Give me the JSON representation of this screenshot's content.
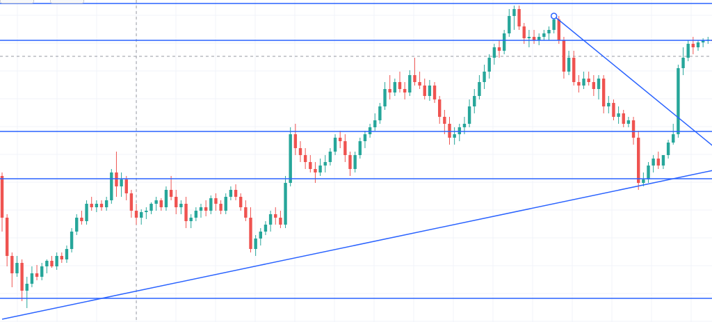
{
  "chart_data": {
    "type": "candlestick",
    "title": "",
    "xlabel": "",
    "ylabel": "",
    "ylim": [
      0,
      463
    ],
    "grid": true,
    "colors": {
      "up": "#26a69a",
      "down": "#ef5350",
      "drawing": "#2962ff",
      "grid": "#f0f3fa",
      "crosshair": "#9598a1"
    },
    "horizontal_levels": [
      458,
      405,
      274,
      206,
      34
    ],
    "crosshair": {
      "x_index": 27,
      "y": 382
    },
    "trendlines": [
      {
        "name": "rising-support",
        "from_index": 0,
        "from_value": 4,
        "to_index": 143,
        "to_value": 218
      },
      {
        "name": "falling-resistance",
        "from_index": 111,
        "from_value": 440,
        "to_index": 143,
        "to_value": 253,
        "anchor_marker": true
      }
    ],
    "candles": [
      [
        210,
        215,
        130,
        150
      ],
      [
        150,
        155,
        80,
        95
      ],
      [
        95,
        100,
        50,
        70
      ],
      [
        70,
        95,
        65,
        85
      ],
      [
        85,
        90,
        30,
        45
      ],
      [
        45,
        65,
        20,
        55
      ],
      [
        55,
        80,
        50,
        70
      ],
      [
        70,
        82,
        60,
        65
      ],
      [
        65,
        85,
        60,
        80
      ],
      [
        80,
        90,
        70,
        88
      ],
      [
        88,
        95,
        78,
        80
      ],
      [
        80,
        100,
        75,
        95
      ],
      [
        95,
        100,
        85,
        90
      ],
      [
        90,
        110,
        85,
        105
      ],
      [
        105,
        135,
        100,
        130
      ],
      [
        130,
        155,
        125,
        150
      ],
      [
        150,
        160,
        140,
        145
      ],
      [
        145,
        175,
        140,
        170
      ],
      [
        170,
        180,
        160,
        165
      ],
      [
        165,
        175,
        158,
        170
      ],
      [
        170,
        175,
        160,
        165
      ],
      [
        165,
        180,
        160,
        175
      ],
      [
        175,
        220,
        170,
        215
      ],
      [
        215,
        245,
        180,
        195
      ],
      [
        195,
        215,
        180,
        205
      ],
      [
        205,
        210,
        175,
        185
      ],
      [
        185,
        190,
        150,
        160
      ],
      [
        160,
        170,
        140,
        150
      ],
      [
        150,
        162,
        140,
        158
      ],
      [
        158,
        165,
        148,
        160
      ],
      [
        160,
        172,
        155,
        170
      ],
      [
        170,
        180,
        160,
        175
      ],
      [
        175,
        178,
        160,
        165
      ],
      [
        165,
        195,
        160,
        190
      ],
      [
        190,
        210,
        175,
        180
      ],
      [
        180,
        190,
        155,
        165
      ],
      [
        165,
        175,
        155,
        170
      ],
      [
        170,
        180,
        135,
        145
      ],
      [
        145,
        155,
        135,
        150
      ],
      [
        150,
        165,
        145,
        160
      ],
      [
        160,
        170,
        150,
        165
      ],
      [
        165,
        175,
        152,
        160
      ],
      [
        160,
        182,
        155,
        178
      ],
      [
        178,
        185,
        160,
        170
      ],
      [
        170,
        175,
        155,
        160
      ],
      [
        160,
        185,
        155,
        180
      ],
      [
        180,
        195,
        175,
        190
      ],
      [
        190,
        198,
        175,
        180
      ],
      [
        180,
        185,
        160,
        165
      ],
      [
        165,
        175,
        145,
        150
      ],
      [
        150,
        165,
        100,
        105
      ],
      [
        105,
        125,
        95,
        120
      ],
      [
        120,
        135,
        110,
        130
      ],
      [
        130,
        145,
        125,
        140
      ],
      [
        140,
        160,
        130,
        155
      ],
      [
        155,
        165,
        140,
        150
      ],
      [
        150,
        160,
        135,
        140
      ],
      [
        140,
        210,
        135,
        200
      ],
      [
        200,
        280,
        195,
        270
      ],
      [
        270,
        285,
        240,
        250
      ],
      [
        250,
        260,
        230,
        240
      ],
      [
        240,
        250,
        220,
        230
      ],
      [
        230,
        240,
        215,
        220
      ],
      [
        220,
        230,
        200,
        215
      ],
      [
        215,
        235,
        210,
        225
      ],
      [
        225,
        240,
        215,
        230
      ],
      [
        230,
        250,
        225,
        245
      ],
      [
        245,
        270,
        240,
        265
      ],
      [
        265,
        275,
        250,
        260
      ],
      [
        260,
        270,
        230,
        240
      ],
      [
        240,
        245,
        210,
        220
      ],
      [
        220,
        245,
        215,
        240
      ],
      [
        240,
        265,
        235,
        260
      ],
      [
        260,
        275,
        250,
        270
      ],
      [
        270,
        285,
        265,
        280
      ],
      [
        280,
        300,
        275,
        290
      ],
      [
        290,
        315,
        285,
        310
      ],
      [
        310,
        345,
        305,
        335
      ],
      [
        335,
        355,
        320,
        330
      ],
      [
        330,
        350,
        325,
        345
      ],
      [
        345,
        360,
        330,
        335
      ],
      [
        335,
        345,
        320,
        330
      ],
      [
        330,
        362,
        325,
        355
      ],
      [
        355,
        380,
        340,
        345
      ],
      [
        345,
        360,
        335,
        340
      ],
      [
        340,
        350,
        320,
        325
      ],
      [
        325,
        348,
        318,
        340
      ],
      [
        340,
        345,
        315,
        320
      ],
      [
        320,
        325,
        285,
        295
      ],
      [
        295,
        305,
        270,
        285
      ],
      [
        285,
        295,
        255,
        265
      ],
      [
        265,
        280,
        255,
        270
      ],
      [
        270,
        285,
        260,
        280
      ],
      [
        280,
        295,
        270,
        285
      ],
      [
        285,
        320,
        280,
        310
      ],
      [
        310,
        335,
        300,
        325
      ],
      [
        325,
        355,
        320,
        345
      ],
      [
        345,
        370,
        335,
        360
      ],
      [
        360,
        385,
        350,
        380
      ],
      [
        380,
        400,
        370,
        395
      ],
      [
        395,
        405,
        380,
        390
      ],
      [
        390,
        420,
        385,
        415
      ],
      [
        415,
        450,
        410,
        440
      ],
      [
        440,
        455,
        420,
        450
      ],
      [
        450,
        455,
        420,
        425
      ],
      [
        425,
        430,
        400,
        408
      ],
      [
        408,
        420,
        395,
        410
      ],
      [
        410,
        420,
        400,
        405
      ],
      [
        405,
        415,
        398,
        410
      ],
      [
        410,
        420,
        405,
        415
      ],
      [
        415,
        425,
        405,
        420
      ],
      [
        420,
        440,
        415,
        435
      ],
      [
        435,
        440,
        400,
        405
      ],
      [
        405,
        410,
        350,
        360
      ],
      [
        360,
        390,
        355,
        380
      ],
      [
        380,
        390,
        340,
        345
      ],
      [
        345,
        355,
        330,
        340
      ],
      [
        340,
        360,
        335,
        350
      ],
      [
        350,
        360,
        340,
        345
      ],
      [
        345,
        355,
        325,
        335
      ],
      [
        335,
        355,
        320,
        350
      ],
      [
        350,
        355,
        300,
        310
      ],
      [
        310,
        325,
        300,
        315
      ],
      [
        315,
        320,
        290,
        295
      ],
      [
        295,
        310,
        285,
        300
      ],
      [
        300,
        305,
        280,
        285
      ],
      [
        285,
        295,
        280,
        290
      ],
      [
        290,
        295,
        255,
        265
      ],
      [
        265,
        275,
        190,
        200
      ],
      [
        200,
        215,
        195,
        205
      ],
      [
        205,
        230,
        200,
        225
      ],
      [
        225,
        240,
        215,
        235
      ],
      [
        235,
        245,
        220,
        225
      ],
      [
        225,
        240,
        220,
        240
      ],
      [
        240,
        262,
        235,
        258
      ],
      [
        258,
        285,
        255,
        270
      ],
      [
        270,
        370,
        265,
        365
      ],
      [
        365,
        395,
        355,
        380
      ],
      [
        380,
        405,
        375,
        400
      ],
      [
        400,
        410,
        385,
        395
      ],
      [
        395,
        405,
        390,
        402
      ],
      [
        402,
        408,
        395,
        405
      ],
      [
        405,
        410,
        400,
        406
      ],
      [
        406,
        408,
        402,
        404
      ]
    ]
  }
}
